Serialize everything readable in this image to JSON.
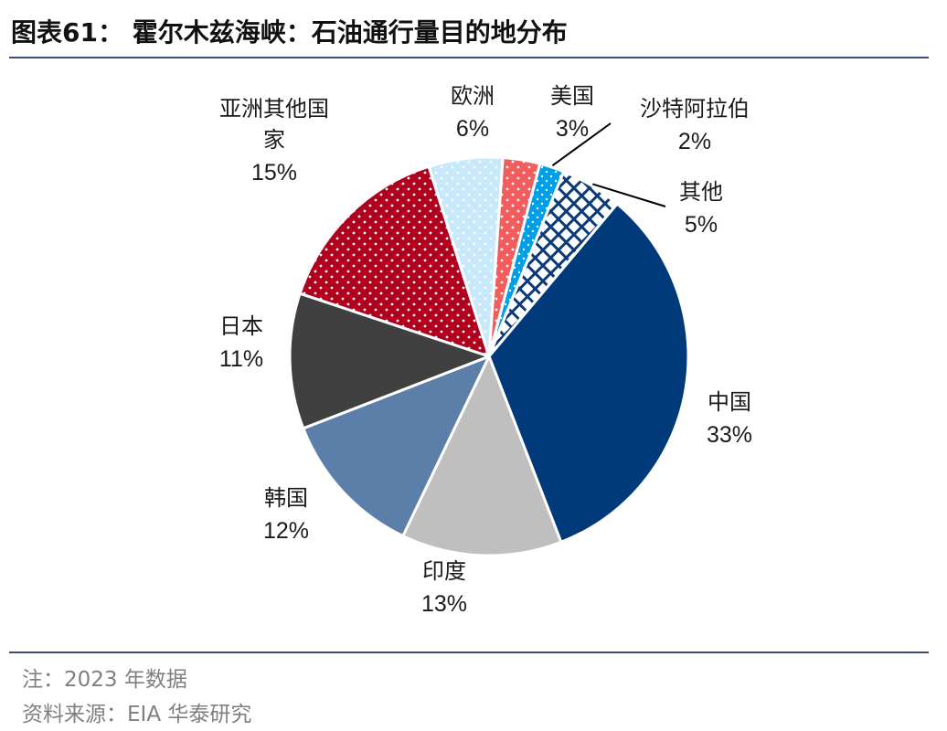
{
  "title": "图表61：  霍尔木兹海峡：石油通行量目的地分布",
  "note": "注：2023 年数据",
  "source": "资料来源：EIA 华泰研究",
  "chart_data": {
    "type": "pie",
    "title": "",
    "start_angle_deg": 40,
    "direction": "clockwise",
    "slices": [
      {
        "label": "中国",
        "value": 33,
        "pct_text": "33%",
        "color": "#003a7a",
        "pattern": "solid"
      },
      {
        "label": "印度",
        "value": 13,
        "pct_text": "13%",
        "color": "#bfbfbf",
        "pattern": "solid"
      },
      {
        "label": "韩国",
        "value": 12,
        "pct_text": "12%",
        "color": "#5b7fa8",
        "pattern": "solid"
      },
      {
        "label": "日本",
        "value": 11,
        "pct_text": "11%",
        "color": "#404040",
        "pattern": "solid"
      },
      {
        "label": "亚洲其他国家",
        "label_lines": [
          "亚洲其他国",
          "家"
        ],
        "value": 15,
        "pct_text": "15%",
        "color": "#b0001e",
        "pattern": "dots"
      },
      {
        "label": "欧洲",
        "value": 6,
        "pct_text": "6%",
        "color": "#c7e9fb",
        "pattern": "dots"
      },
      {
        "label": "美国",
        "value": 3,
        "pct_text": "3%",
        "color": "#f25c5c",
        "pattern": "dots"
      },
      {
        "label": "沙特阿拉伯",
        "value": 2,
        "pct_text": "2%",
        "color": "#00a0e9",
        "pattern": "dots"
      },
      {
        "label": "其他",
        "value": 5,
        "pct_text": "5%",
        "color": "#0b3a78",
        "pattern": "crosshatch"
      }
    ]
  }
}
